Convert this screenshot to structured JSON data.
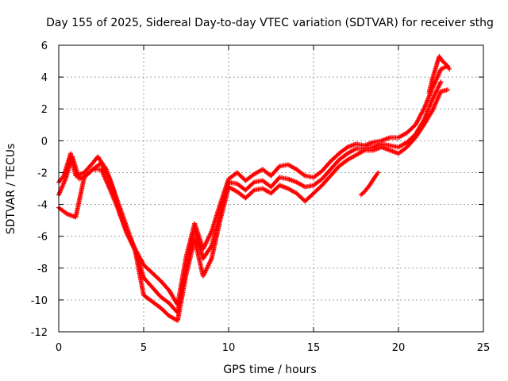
{
  "chart_data": {
    "type": "scatter",
    "title": "Day 155 of 2025, Sidereal Day-to-day VTEC variation (SDTVAR) for receiver sthg",
    "xlabel": "GPS time / hours",
    "ylabel": "SDTVAR / TECUs",
    "xlim": [
      0,
      25
    ],
    "ylim": [
      -12,
      6
    ],
    "xticks": [
      0,
      5,
      10,
      15,
      20,
      25
    ],
    "yticks": [
      -12,
      -10,
      -8,
      -6,
      -4,
      -2,
      0,
      2,
      4,
      6
    ],
    "xtick_labels": [
      "0",
      "5",
      "10",
      "15",
      "20",
      "25"
    ],
    "ytick_labels": [
      "-12",
      "-10",
      "-8",
      "-6",
      "-4",
      "-2",
      "0",
      "2",
      "4",
      "6"
    ],
    "grid": true,
    "marker": "+",
    "series_color": "#ff0000",
    "series": [
      {
        "name": "track-a",
        "x": [
          0.0,
          0.3,
          0.7,
          1.0,
          1.5,
          2.0,
          2.3,
          2.8,
          3.2,
          3.6,
          4.0,
          4.5,
          5.0,
          5.5,
          6.0,
          6.5,
          7.0,
          7.5,
          8.0,
          8.5,
          9.0,
          9.5,
          10.0,
          10.5,
          11.0,
          11.5,
          12.0,
          12.5,
          13.0,
          13.5,
          14.0,
          14.5,
          15.0,
          15.5,
          16.0,
          16.5,
          17.0,
          17.5,
          18.0,
          18.5,
          19.0,
          19.5,
          20.0,
          20.5,
          21.0,
          21.5,
          22.0,
          22.5,
          22.9
        ],
        "y": [
          -2.6,
          -2.2,
          -0.8,
          -2.2,
          -2.0,
          -1.4,
          -1.0,
          -1.8,
          -3.0,
          -4.6,
          -5.7,
          -6.8,
          -7.8,
          -8.3,
          -8.8,
          -9.4,
          -10.3,
          -7.3,
          -5.2,
          -6.8,
          -5.7,
          -4.0,
          -2.4,
          -2.0,
          -2.5,
          -2.1,
          -1.8,
          -2.2,
          -1.6,
          -1.5,
          -1.8,
          -2.2,
          -2.3,
          -1.9,
          -1.3,
          -0.8,
          -0.4,
          -0.2,
          -0.3,
          -0.1,
          0.0,
          0.2,
          0.2,
          0.5,
          1.0,
          2.0,
          3.3,
          4.5,
          4.7
        ]
      },
      {
        "name": "track-b",
        "x": [
          0.0,
          0.4,
          0.8,
          1.2,
          1.6,
          2.0,
          2.5,
          3.0,
          3.4,
          3.8,
          4.2,
          4.6,
          5.0,
          5.5,
          6.0,
          6.5,
          7.0,
          7.5,
          8.0,
          8.5,
          9.0,
          9.5,
          10.0,
          10.5,
          11.0,
          11.5,
          12.0,
          12.5,
          13.0,
          13.5,
          14.0,
          14.5,
          15.0,
          15.5,
          16.0,
          16.5,
          17.0,
          17.5,
          18.0,
          18.5,
          19.0,
          19.5,
          20.0,
          20.5,
          21.0,
          21.5,
          22.0,
          22.5
        ],
        "y": [
          -3.4,
          -2.4,
          -1.0,
          -2.4,
          -2.2,
          -1.8,
          -1.4,
          -2.4,
          -3.6,
          -4.8,
          -6.0,
          -7.2,
          -8.6,
          -9.2,
          -9.8,
          -10.2,
          -10.8,
          -8.0,
          -5.6,
          -7.4,
          -6.6,
          -4.6,
          -2.6,
          -2.7,
          -3.1,
          -2.6,
          -2.5,
          -2.9,
          -2.3,
          -2.4,
          -2.6,
          -2.9,
          -2.8,
          -2.4,
          -1.8,
          -1.2,
          -0.8,
          -0.5,
          -0.5,
          -0.4,
          -0.2,
          -0.3,
          -0.4,
          -0.1,
          0.4,
          1.3,
          2.6,
          3.7
        ]
      },
      {
        "name": "track-c",
        "x": [
          0.0,
          0.5,
          1.0,
          1.5,
          2.0,
          2.5,
          3.0,
          3.5,
          4.0,
          4.5,
          5.0,
          5.5,
          6.0,
          6.5,
          7.0,
          7.5,
          8.0,
          8.5,
          9.0,
          9.5,
          10.0,
          10.5,
          11.0,
          11.5,
          12.0,
          12.5,
          13.0,
          13.5,
          14.0,
          14.5,
          15.0,
          15.5,
          16.0,
          16.5,
          17.0,
          17.5,
          18.0,
          18.5,
          19.0,
          19.5,
          20.0,
          20.5,
          21.0,
          21.5,
          22.0,
          22.5,
          22.9
        ],
        "y": [
          -4.2,
          -4.6,
          -4.8,
          -2.3,
          -1.8,
          -1.8,
          -3.0,
          -4.3,
          -5.8,
          -6.9,
          -9.7,
          -10.1,
          -10.5,
          -11.0,
          -11.3,
          -8.4,
          -6.2,
          -8.5,
          -7.4,
          -5.0,
          -2.9,
          -3.2,
          -3.6,
          -3.1,
          -3.0,
          -3.3,
          -2.8,
          -3.0,
          -3.3,
          -3.8,
          -3.3,
          -2.8,
          -2.2,
          -1.6,
          -1.2,
          -0.9,
          -0.6,
          -0.6,
          -0.4,
          -0.6,
          -0.8,
          -0.4,
          0.2,
          1.0,
          1.9,
          3.1,
          3.2
        ]
      },
      {
        "name": "track-d",
        "x": [
          17.8,
          18.0,
          18.3,
          18.6,
          18.8
        ],
        "y": [
          -3.4,
          -3.2,
          -2.8,
          -2.3,
          -2.0
        ]
      },
      {
        "name": "track-e",
        "x": [
          21.8,
          22.0,
          22.2,
          22.4,
          22.6,
          22.8,
          23.0
        ],
        "y": [
          3.0,
          3.9,
          4.6,
          5.3,
          5.0,
          4.8,
          4.5
        ]
      }
    ]
  }
}
